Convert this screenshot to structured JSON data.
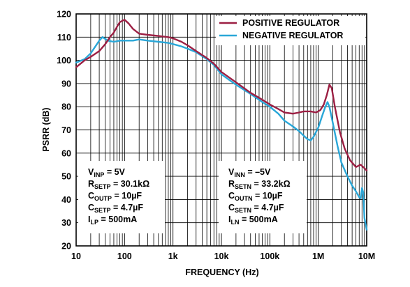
{
  "chart_data": {
    "type": "line",
    "xlabel": "FREQUENCY (Hz)",
    "ylabel": "PSRR (dB)",
    "xscale": "log",
    "xlim": [
      10,
      10000000
    ],
    "ylim": [
      20,
      120
    ],
    "x_ticks": [
      {
        "value": 10,
        "label": "10"
      },
      {
        "value": 100,
        "label": "100"
      },
      {
        "value": 1000,
        "label": "1k"
      },
      {
        "value": 10000,
        "label": "10k"
      },
      {
        "value": 100000,
        "label": "100k"
      },
      {
        "value": 1000000,
        "label": "1M"
      },
      {
        "value": 10000000,
        "label": "10M"
      }
    ],
    "y_ticks": [
      20,
      30,
      40,
      50,
      60,
      70,
      80,
      90,
      100,
      110,
      120
    ],
    "grid": true,
    "legend_position": "top-right",
    "series": [
      {
        "name": "POSITIVE REGULATOR",
        "color": "#9c1f43",
        "points": [
          [
            10,
            97
          ],
          [
            15,
            100
          ],
          [
            20,
            101.5
          ],
          [
            30,
            104
          ],
          [
            40,
            107
          ],
          [
            50,
            110
          ],
          [
            60,
            112
          ],
          [
            70,
            114.5
          ],
          [
            80,
            116.5
          ],
          [
            100,
            117.5
          ],
          [
            120,
            116
          ],
          [
            150,
            113.5
          ],
          [
            200,
            111.5
          ],
          [
            300,
            111
          ],
          [
            500,
            110.5
          ],
          [
            800,
            110
          ],
          [
            1000,
            109.5
          ],
          [
            1500,
            108
          ],
          [
            2000,
            106.5
          ],
          [
            3000,
            104
          ],
          [
            5000,
            101
          ],
          [
            7000,
            98.5
          ],
          [
            10000,
            95
          ],
          [
            20000,
            90.5
          ],
          [
            40000,
            86
          ],
          [
            70000,
            83
          ],
          [
            100000,
            81
          ],
          [
            150000,
            79
          ],
          [
            200000,
            77.5
          ],
          [
            300000,
            77
          ],
          [
            400000,
            77.5
          ],
          [
            500000,
            78
          ],
          [
            700000,
            78
          ],
          [
            900000,
            77.5
          ],
          [
            1100000,
            78.5
          ],
          [
            1300000,
            81
          ],
          [
            1500000,
            85
          ],
          [
            1700000,
            89.5
          ],
          [
            1900000,
            88
          ],
          [
            2200000,
            80
          ],
          [
            2800000,
            69
          ],
          [
            3500000,
            62
          ],
          [
            4500000,
            57
          ],
          [
            6000000,
            54
          ],
          [
            7500000,
            55
          ],
          [
            9000000,
            53.5
          ],
          [
            10000000,
            52.5
          ]
        ]
      },
      {
        "name": "NEGATIVE REGULATOR",
        "color": "#2aa7d8",
        "points": [
          [
            10,
            99
          ],
          [
            15,
            100.5
          ],
          [
            20,
            103
          ],
          [
            25,
            106
          ],
          [
            30,
            108.5
          ],
          [
            35,
            110
          ],
          [
            45,
            108.5
          ],
          [
            60,
            108
          ],
          [
            80,
            108.5
          ],
          [
            100,
            108.5
          ],
          [
            150,
            108.5
          ],
          [
            200,
            109
          ],
          [
            300,
            108.5
          ],
          [
            500,
            108
          ],
          [
            800,
            107.5
          ],
          [
            1000,
            107
          ],
          [
            1500,
            106
          ],
          [
            2000,
            105
          ],
          [
            3000,
            103.5
          ],
          [
            5000,
            100.5
          ],
          [
            7000,
            98
          ],
          [
            10000,
            94
          ],
          [
            20000,
            89.5
          ],
          [
            40000,
            85.5
          ],
          [
            70000,
            82
          ],
          [
            100000,
            80
          ],
          [
            150000,
            77
          ],
          [
            200000,
            74
          ],
          [
            300000,
            71.5
          ],
          [
            400000,
            69.5
          ],
          [
            500000,
            67.5
          ],
          [
            600000,
            66
          ],
          [
            700000,
            65.5
          ],
          [
            800000,
            67
          ],
          [
            1000000,
            71
          ],
          [
            1200000,
            76
          ],
          [
            1400000,
            80
          ],
          [
            1550000,
            82
          ],
          [
            1700000,
            80
          ],
          [
            2000000,
            73
          ],
          [
            2500000,
            63
          ],
          [
            3000000,
            56
          ],
          [
            4000000,
            50
          ],
          [
            5000000,
            46
          ],
          [
            6000000,
            43.5
          ],
          [
            7000000,
            41
          ],
          [
            7500000,
            40.5
          ],
          [
            8000000,
            45
          ],
          [
            8500000,
            43
          ],
          [
            9000000,
            32
          ],
          [
            10000000,
            27
          ]
        ]
      }
    ],
    "annotations": [
      {
        "lines": [
          {
            "main": "V",
            "sub": "INP",
            "rest": " = 5V"
          },
          {
            "main": "R",
            "sub": "SETP",
            "rest": " = 30.1kΩ"
          },
          {
            "main": "C",
            "sub": "OUTP",
            "rest": " = 10µF"
          },
          {
            "main": "C",
            "sub": "SETP",
            "rest": " = 4.7µF"
          },
          {
            "main": "I",
            "sub": "LP",
            "rest": " = 500mA"
          }
        ]
      },
      {
        "lines": [
          {
            "main": "V",
            "sub": "INN",
            "rest": " = –5V"
          },
          {
            "main": "R",
            "sub": "SETN",
            "rest": " = 33.2kΩ"
          },
          {
            "main": "C",
            "sub": "OUTN",
            "rest": " = 10µF"
          },
          {
            "main": "C",
            "sub": "SETN",
            "rest": " = 4.7µF"
          },
          {
            "main": "I",
            "sub": "LN",
            "rest": " = 500mA"
          }
        ]
      }
    ]
  }
}
